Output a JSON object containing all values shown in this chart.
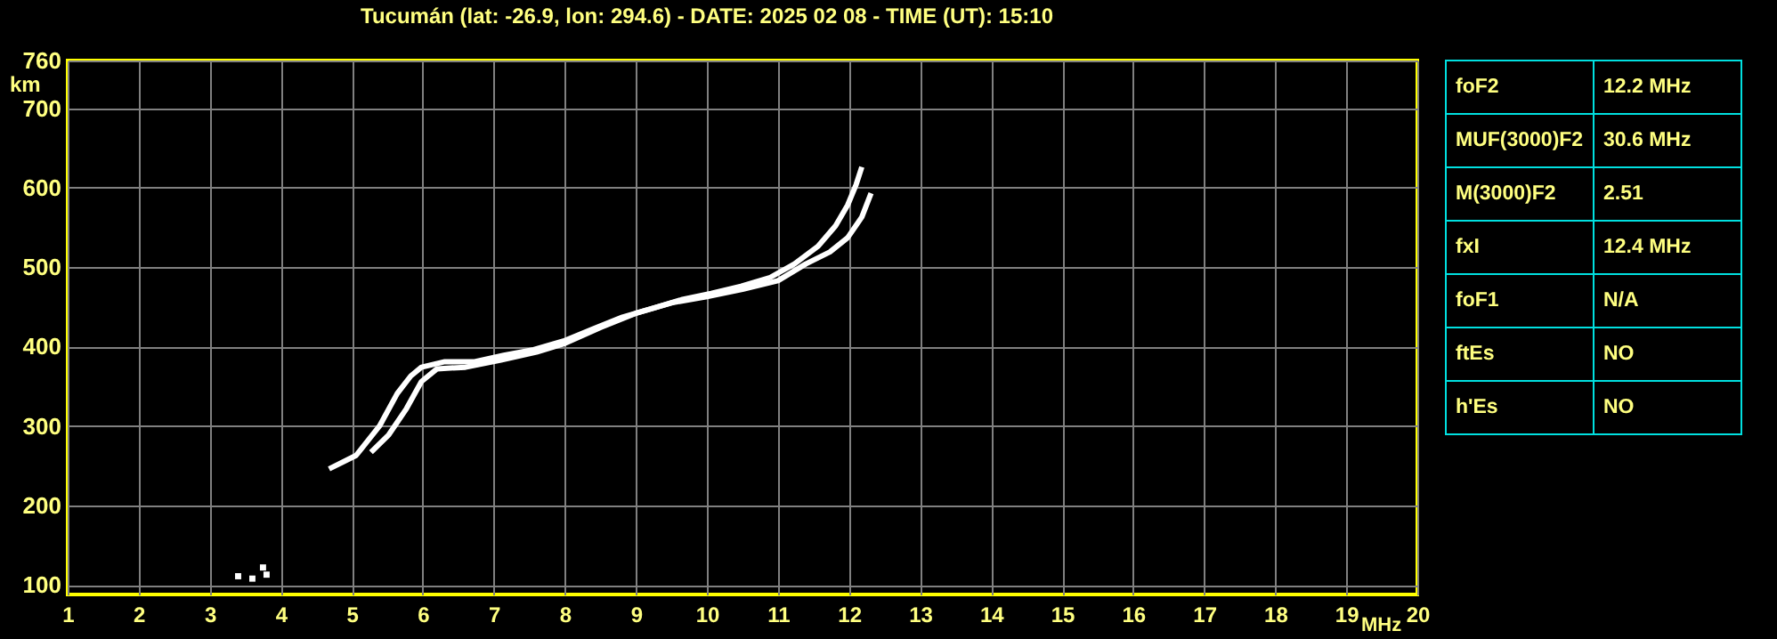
{
  "chart_data": [
    {
      "type": "line",
      "title": "Tucumán (lat: -26.9, lon: 294.6) - DATE: 2025 02 08 - TIME (UT): 15:10",
      "xlabel": "MHz",
      "ylabel": "km",
      "xlim": [
        1,
        20
      ],
      "ylim": [
        88,
        760
      ],
      "xticks": [
        1,
        2,
        3,
        4,
        5,
        6,
        7,
        8,
        9,
        10,
        11,
        12,
        13,
        14,
        15,
        16,
        17,
        18,
        19,
        20
      ],
      "yticks": [
        100,
        200,
        300,
        400,
        500,
        600,
        700,
        760
      ],
      "grid": true,
      "marker": "none",
      "line_style": "solid",
      "series": [
        {
          "color": "#ffffff",
          "x": [
            4.68,
            5.06,
            5.39,
            5.64,
            5.83,
            5.98,
            6.31,
            6.73,
            7.14,
            7.56,
            7.98,
            8.39,
            8.81,
            9.23,
            9.64,
            10.06,
            10.48,
            10.89,
            11.23,
            11.56,
            11.81,
            11.98,
            12.1,
            12.18
          ],
          "values": [
            246,
            263,
            300,
            341,
            363,
            374,
            381,
            381,
            389,
            396,
            407,
            422,
            437,
            448,
            459,
            467,
            476,
            487,
            504,
            526,
            552,
            578,
            604,
            626
          ]
        },
        {
          "color": "#ffffff",
          "x": [
            5.27,
            5.52,
            5.77,
            5.98,
            6.2,
            6.6,
            7.1,
            7.6,
            8.0,
            8.5,
            9.0,
            9.5,
            10.0,
            10.5,
            11.0,
            11.39,
            11.73,
            11.98,
            12.18,
            12.31
          ],
          "values": [
            267,
            289,
            322,
            356,
            372,
            374,
            383,
            393,
            404,
            424,
            442,
            455,
            463,
            472,
            483,
            504,
            519,
            537,
            563,
            593
          ]
        },
        {
          "type": "scatter",
          "color": "#ffffff",
          "marker": "square",
          "x": [
            3.4,
            3.6,
            3.8,
            3.75
          ],
          "values": [
            111,
            108,
            113,
            122
          ]
        }
      ]
    },
    {
      "type": "other",
      "annotations": [
        "foF2",
        "12.2 MHz",
        "MUF(3000)F2",
        "30.6 MHz",
        "M(3000)F2",
        "2.51",
        "fxI",
        "12.4 MHz",
        "foF1",
        "N/A",
        "ftEs",
        "NO",
        "h'Es",
        "NO"
      ]
    }
  ]
}
